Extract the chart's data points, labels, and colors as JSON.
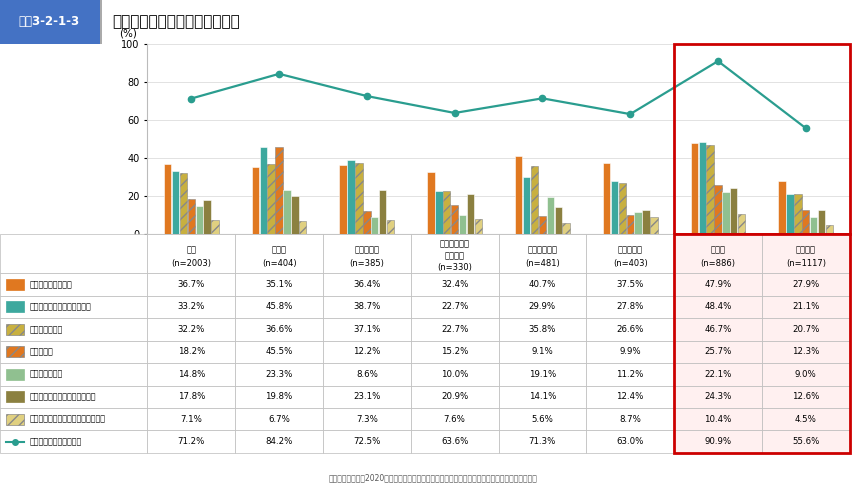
{
  "title": "データを活用している業務領域",
  "title_label": "図表3-2-1-3",
  "categories": [
    "全体\n(n=2003)",
    "製造業\n(n=404)",
    "情報通信業\n(n=385)",
    "エネルギー・\nインフラ\n(n=330)",
    "商業・流通業\n(n=481)",
    "サービス業\n(n=403)",
    "大企業\n(n=886)",
    "中小企業\n(n=1117)"
  ],
  "cat_labels_line1": [
    "全体",
    "製造業",
    "情報通信業",
    "エネルギー・",
    "商業・流通業",
    "サービス業",
    "大企業",
    "中小企業"
  ],
  "cat_labels_line2": [
    "(n=2003)",
    "(n=404)",
    "(n=385)",
    "インフラ",
    "(n=481)",
    "(n=403)",
    "(n=886)",
    "(n=1117)"
  ],
  "cat_labels_line3": [
    "",
    "",
    "",
    "(n=330)",
    "",
    "",
    "",
    ""
  ],
  "series": [
    {
      "name": "経営企画・組織改革",
      "color": "#E07820",
      "hatch": "",
      "values": [
        36.7,
        35.1,
        36.4,
        32.4,
        40.7,
        37.5,
        47.9,
        27.9
      ]
    },
    {
      "name": "製品・サービスの企画、開発",
      "color": "#3DA89E",
      "hatch": "",
      "values": [
        33.2,
        45.8,
        38.7,
        22.7,
        29.9,
        27.8,
        48.4,
        21.1
      ]
    },
    {
      "name": "マーケティング",
      "color": "#C8B040",
      "hatch": "///",
      "values": [
        32.2,
        36.6,
        37.1,
        22.7,
        35.8,
        26.6,
        46.7,
        20.7
      ]
    },
    {
      "name": "生産・製造",
      "color": "#E07820",
      "hatch": "///",
      "values": [
        18.2,
        45.5,
        12.2,
        15.2,
        9.1,
        9.9,
        25.7,
        12.3
      ]
    },
    {
      "name": "物流・在庫管理",
      "color": "#90C090",
      "hatch": "",
      "values": [
        14.8,
        23.3,
        8.6,
        10.0,
        19.1,
        11.2,
        22.1,
        9.0
      ]
    },
    {
      "name": "保守・メンテナンス・サポート",
      "color": "#8B8040",
      "hatch": "",
      "values": [
        17.8,
        19.8,
        23.1,
        20.9,
        14.1,
        12.4,
        24.3,
        12.6
      ]
    },
    {
      "name": "その他（基礎研究、リスク管理等）",
      "color": "#E0D080",
      "hatch": "///",
      "values": [
        7.1,
        6.7,
        7.3,
        7.6,
        5.6,
        8.7,
        10.4,
        4.5
      ]
    }
  ],
  "line_series": {
    "name": "いずれかを利用している",
    "color": "#2A9D8F",
    "marker": "o",
    "values": [
      71.2,
      84.2,
      72.5,
      63.6,
      71.3,
      63.0,
      90.9,
      55.6
    ]
  },
  "ylim": [
    0,
    100
  ],
  "yticks": [
    0,
    20,
    40,
    60,
    80,
    100
  ],
  "ylabel": "(%)",
  "source": "（出典）総務省（2020）「デジタルデータの経済的価値の計測と活用の現状に関する調査研究」",
  "table_data": [
    [
      "36.7%",
      "35.1%",
      "36.4%",
      "32.4%",
      "40.7%",
      "37.5%",
      "47.9%",
      "27.9%"
    ],
    [
      "33.2%",
      "45.8%",
      "38.7%",
      "22.7%",
      "29.9%",
      "27.8%",
      "48.4%",
      "21.1%"
    ],
    [
      "32.2%",
      "36.6%",
      "37.1%",
      "22.7%",
      "35.8%",
      "26.6%",
      "46.7%",
      "20.7%"
    ],
    [
      "18.2%",
      "45.5%",
      "12.2%",
      "15.2%",
      "9.1%",
      "9.9%",
      "25.7%",
      "12.3%"
    ],
    [
      "14.8%",
      "23.3%",
      "8.6%",
      "10.0%",
      "19.1%",
      "11.2%",
      "22.1%",
      "9.0%"
    ],
    [
      "17.8%",
      "19.8%",
      "23.1%",
      "20.9%",
      "14.1%",
      "12.4%",
      "24.3%",
      "12.6%"
    ],
    [
      "7.1%",
      "6.7%",
      "7.3%",
      "7.6%",
      "5.6%",
      "8.7%",
      "10.4%",
      "4.5%"
    ],
    [
      "71.2%",
      "84.2%",
      "72.5%",
      "63.6%",
      "71.3%",
      "63.0%",
      "90.9%",
      "55.6%"
    ]
  ],
  "legend_colors": [
    "#E07820",
    "#3DA89E",
    "#C8B040",
    "#E07820",
    "#90C090",
    "#8B8040",
    "#E0D080",
    "#2A9D8F"
  ],
  "legend_hatches": [
    "",
    "",
    "///",
    "///",
    "",
    "",
    "///",
    ""
  ],
  "legend_names": [
    "経営企画・組織改革",
    "製品・サービスの企画、開発",
    "マーケティング",
    "生産・製造",
    "物流・在庫管理",
    "保守・メンテナンス・サポート",
    "その他（基礎研究、リスク管理等）",
    "いずれかを利用している"
  ],
  "title_bg": "#4472C4",
  "title_fg": "#FFFFFF",
  "header_bg": "#E8F0F8",
  "highlight_bg": "#FFF0F0",
  "highlight_border": "#CC0000",
  "background_color": "#FFFFFF",
  "grid_color": "#DDDDDD",
  "table_border": "#BBBBBB"
}
